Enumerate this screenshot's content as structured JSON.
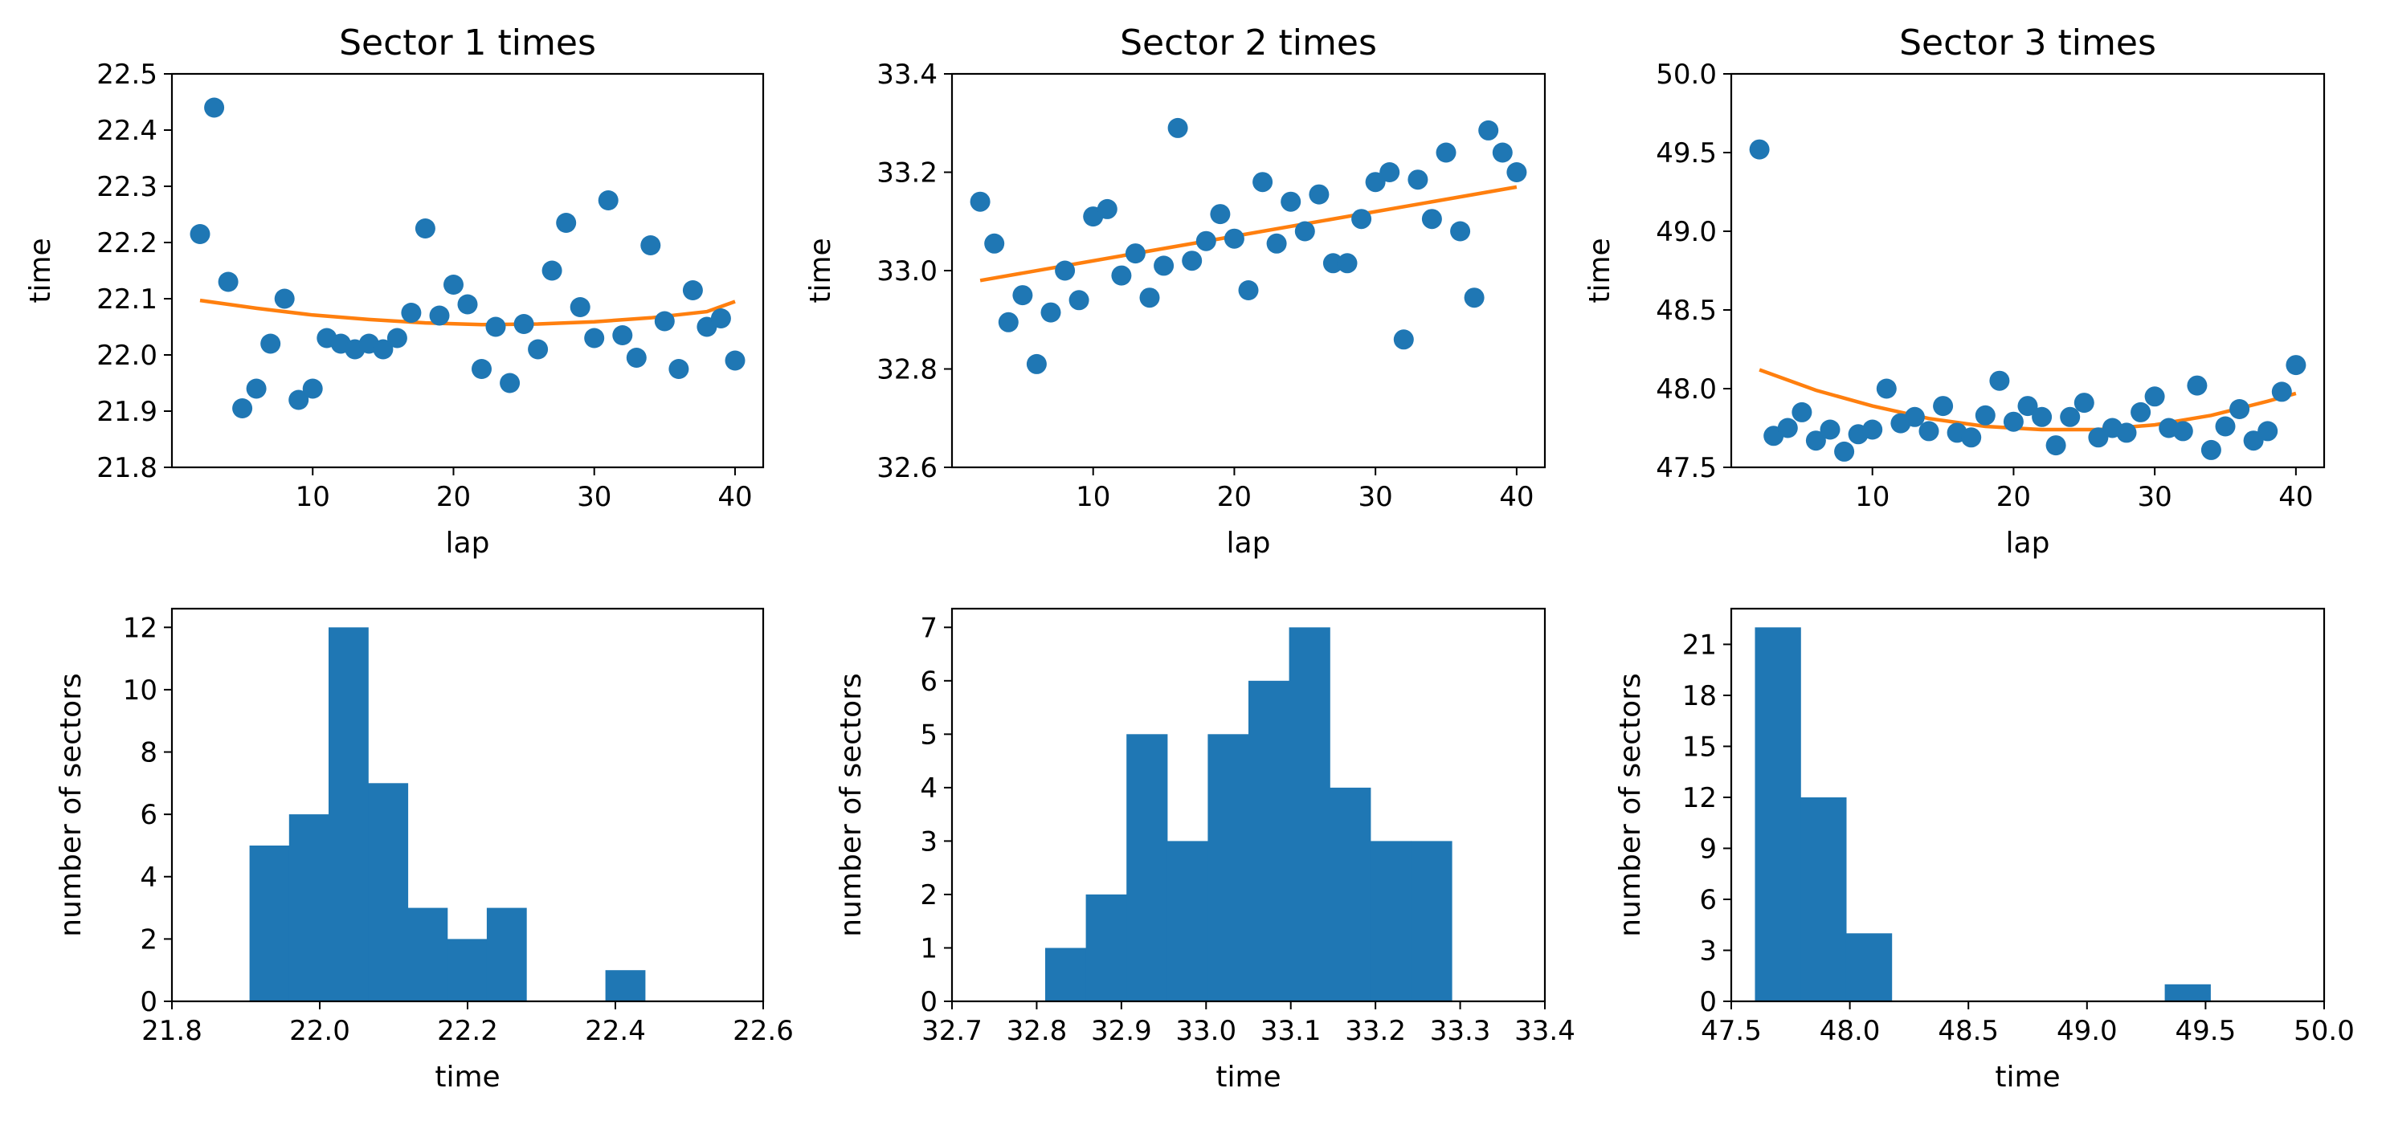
{
  "chart_data": [
    {
      "type": "scatter",
      "title": "Sector 1 times",
      "xlabel": "lap",
      "ylabel": "time",
      "xlim": [
        0,
        42
      ],
      "ylim": [
        21.8,
        22.5
      ],
      "xticks": [
        "10",
        "20",
        "30",
        "40"
      ],
      "yticks": [
        "21.8",
        "21.9",
        "22.0",
        "22.1",
        "22.2",
        "22.3",
        "22.4",
        "22.5"
      ],
      "points_x": [
        2,
        3,
        4,
        5,
        6,
        7,
        8,
        9,
        10,
        11,
        12,
        13,
        14,
        15,
        16,
        17,
        18,
        19,
        20,
        21,
        22,
        23,
        24,
        25,
        26,
        27,
        28,
        29,
        30,
        31,
        32,
        33,
        34,
        35,
        36,
        37,
        38,
        39,
        40
      ],
      "points_y": [
        22.215,
        22.44,
        22.13,
        21.905,
        21.94,
        22.02,
        22.1,
        21.92,
        21.94,
        22.03,
        22.02,
        22.01,
        22.02,
        22.01,
        22.03,
        22.075,
        22.225,
        22.07,
        22.125,
        22.09,
        21.975,
        22.05,
        21.95,
        22.055,
        22.01,
        22.15,
        22.235,
        22.085,
        22.03,
        22.275,
        22.035,
        21.995,
        22.195,
        22.06,
        21.975,
        22.115,
        22.05,
        22.065,
        21.99
      ],
      "fit_x": [
        2,
        6,
        10,
        14,
        18,
        22,
        26,
        30,
        34,
        38,
        40
      ],
      "fit_y": [
        22.097,
        22.083,
        22.071,
        22.063,
        22.057,
        22.054,
        22.055,
        22.059,
        22.066,
        22.077,
        22.095
      ]
    },
    {
      "type": "scatter",
      "title": "Sector 2 times",
      "xlabel": "lap",
      "ylabel": "time",
      "xlim": [
        0,
        42
      ],
      "ylim": [
        32.6,
        33.4
      ],
      "xticks": [
        "10",
        "20",
        "30",
        "40"
      ],
      "yticks": [
        "32.6",
        "32.8",
        "33.0",
        "33.2",
        "33.4"
      ],
      "points_x": [
        2,
        3,
        4,
        5,
        6,
        7,
        8,
        9,
        10,
        11,
        12,
        13,
        14,
        15,
        16,
        17,
        18,
        19,
        20,
        21,
        22,
        23,
        24,
        25,
        26,
        27,
        28,
        29,
        30,
        31,
        32,
        33,
        34,
        35,
        36,
        37,
        38,
        39,
        40
      ],
      "points_y": [
        33.14,
        33.055,
        32.895,
        32.95,
        32.81,
        32.915,
        33.0,
        32.94,
        33.11,
        33.125,
        32.99,
        33.035,
        32.945,
        33.01,
        33.29,
        33.02,
        33.06,
        33.115,
        33.065,
        32.96,
        33.18,
        33.055,
        33.14,
        33.08,
        33.155,
        33.015,
        33.015,
        33.105,
        33.18,
        33.2,
        32.86,
        33.185,
        33.105,
        33.24,
        33.08,
        32.945,
        33.285,
        33.24,
        33.2
      ],
      "fit_x": [
        2,
        40
      ],
      "fit_y": [
        32.98,
        33.17
      ]
    },
    {
      "type": "scatter",
      "title": "Sector 3 times",
      "xlabel": "lap",
      "ylabel": "time",
      "xlim": [
        0,
        42
      ],
      "ylim": [
        47.5,
        50.0
      ],
      "xticks": [
        "10",
        "20",
        "30",
        "40"
      ],
      "yticks": [
        "47.5",
        "48.0",
        "48.5",
        "49.0",
        "49.5",
        "50.0"
      ],
      "points_x": [
        2,
        3,
        4,
        5,
        6,
        7,
        8,
        9,
        10,
        11,
        12,
        13,
        14,
        15,
        16,
        17,
        18,
        19,
        20,
        21,
        22,
        23,
        24,
        25,
        26,
        27,
        28,
        29,
        30,
        31,
        32,
        33,
        34,
        35,
        36,
        37,
        38,
        39,
        40
      ],
      "points_y": [
        49.52,
        47.7,
        47.75,
        47.85,
        47.67,
        47.74,
        47.6,
        47.71,
        47.74,
        48.0,
        47.78,
        47.82,
        47.73,
        47.89,
        47.72,
        47.69,
        47.83,
        48.05,
        47.79,
        47.89,
        47.82,
        47.64,
        47.82,
        47.91,
        47.69,
        47.75,
        47.72,
        47.85,
        47.95,
        47.75,
        47.73,
        48.02,
        47.61,
        47.76,
        47.87,
        47.67,
        47.73,
        47.98,
        48.15
      ],
      "fit_x": [
        2,
        6,
        10,
        14,
        18,
        22,
        26,
        30,
        34,
        38,
        40
      ],
      "fit_y": [
        48.12,
        47.99,
        47.89,
        47.81,
        47.76,
        47.74,
        47.74,
        47.77,
        47.83,
        47.92,
        47.97
      ]
    },
    {
      "type": "bar",
      "title": "",
      "xlabel": "time",
      "ylabel": "number of sectors",
      "xlim": [
        21.8,
        22.6
      ],
      "ylim": [
        0,
        12.6
      ],
      "xticks": [
        "21.8",
        "22.0",
        "22.2",
        "22.4",
        "22.6"
      ],
      "xtick_values": [
        21.8,
        22.0,
        22.2,
        22.4,
        22.6
      ],
      "yticks": [
        "0",
        "2",
        "4",
        "6",
        "8",
        "10",
        "12"
      ],
      "ytick_values": [
        0,
        2,
        4,
        6,
        8,
        10,
        12
      ],
      "bin_start": 21.905,
      "bin_width": 0.0535,
      "counts": [
        5,
        6,
        12,
        7,
        3,
        2,
        3,
        0,
        0,
        1
      ]
    },
    {
      "type": "bar",
      "title": "",
      "xlabel": "time",
      "ylabel": "number of sectors",
      "xlim": [
        32.7,
        33.4
      ],
      "ylim": [
        0,
        7.35
      ],
      "xticks": [
        "32.7",
        "32.8",
        "32.9",
        "33.0",
        "33.1",
        "33.2",
        "33.3",
        "33.4"
      ],
      "xtick_values": [
        32.7,
        32.8,
        32.9,
        33.0,
        33.1,
        33.2,
        33.3,
        33.4
      ],
      "yticks": [
        "0",
        "1",
        "2",
        "3",
        "4",
        "5",
        "6",
        "7"
      ],
      "ytick_values": [
        0,
        1,
        2,
        3,
        4,
        5,
        6,
        7
      ],
      "bin_start": 32.81,
      "bin_width": 0.048,
      "counts": [
        1,
        2,
        5,
        3,
        5,
        6,
        7,
        4,
        3,
        3
      ]
    },
    {
      "type": "bar",
      "title": "",
      "xlabel": "time",
      "ylabel": "number of sectors",
      "xlim": [
        47.5,
        50.0
      ],
      "ylim": [
        0,
        23.1
      ],
      "xticks": [
        "47.5",
        "48.0",
        "48.5",
        "49.0",
        "49.5",
        "50.0"
      ],
      "xtick_values": [
        47.5,
        48.0,
        48.5,
        49.0,
        49.5,
        50.0
      ],
      "yticks": [
        "0",
        "3",
        "6",
        "9",
        "12",
        "15",
        "18",
        "21"
      ],
      "ytick_values": [
        0,
        3,
        6,
        9,
        12,
        15,
        18,
        21
      ],
      "bin_start": 47.6,
      "bin_width": 0.192,
      "counts": [
        22,
        12,
        4,
        0,
        0,
        0,
        0,
        0,
        0,
        1
      ]
    }
  ],
  "colors": {
    "points": "#1f77b4",
    "fit": "#ff7f0e",
    "bars": "#1f77b4",
    "axes": "#000000"
  }
}
